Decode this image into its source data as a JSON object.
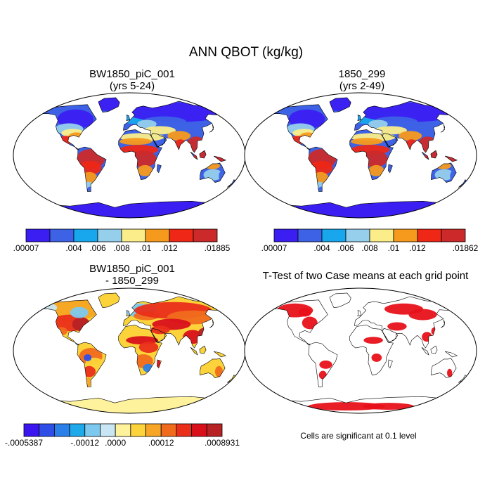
{
  "title": "ANN QBOT (kg/kg)",
  "panels": [
    {
      "title_line1": "BW1850_piC_001",
      "title_line2": "(yrs 5-24)"
    },
    {
      "title_line1": "1850_299",
      "title_line2": "(yrs 2-49)"
    },
    {
      "title_line1": "BW1850_piC_001",
      "title_line2": "- 1850_299"
    },
    {
      "title_line1": "T-Test of two Case means at each grid point",
      "title_line2": ""
    }
  ],
  "colorbars": [
    {
      "colors": [
        "#3b1ff2",
        "#3d62e6",
        "#18a6ed",
        "#95cfeb",
        "#fbee8a",
        "#f59a1c",
        "#ee2716",
        "#cc2a2a"
      ],
      "labels": [
        ".00007",
        ".004",
        ".006",
        ".008",
        ".01",
        ".012",
        ".01885"
      ],
      "label_at_boundary": [
        0,
        2,
        3,
        4,
        5,
        6,
        8
      ]
    },
    {
      "colors": [
        "#3b1ff2",
        "#3d62e6",
        "#18a6ed",
        "#95cfeb",
        "#fbee8a",
        "#f59a1c",
        "#ee2716",
        "#cc2a2a"
      ],
      "labels": [
        ".00007",
        ".004",
        ".006",
        ".008",
        ".01",
        ".012",
        ".01862"
      ],
      "label_at_boundary": [
        0,
        2,
        3,
        4,
        5,
        6,
        8
      ]
    },
    {
      "colors": [
        "#3a15ef",
        "#2f4ee8",
        "#2a7fe8",
        "#1ea9ea",
        "#7dc8ee",
        "#c8e6f4",
        "#fff29d",
        "#fcd33a",
        "#f6a524",
        "#f06c1c",
        "#ea2e1a",
        "#d9101b",
        "#b72225"
      ],
      "labels": [
        "-.0005387",
        "-.00012",
        ".0000",
        ".00012",
        ".0008931"
      ],
      "label_at_boundary": [
        0,
        4,
        6,
        9,
        13
      ]
    }
  ],
  "note": "Cells are significant at 0.1 level"
}
